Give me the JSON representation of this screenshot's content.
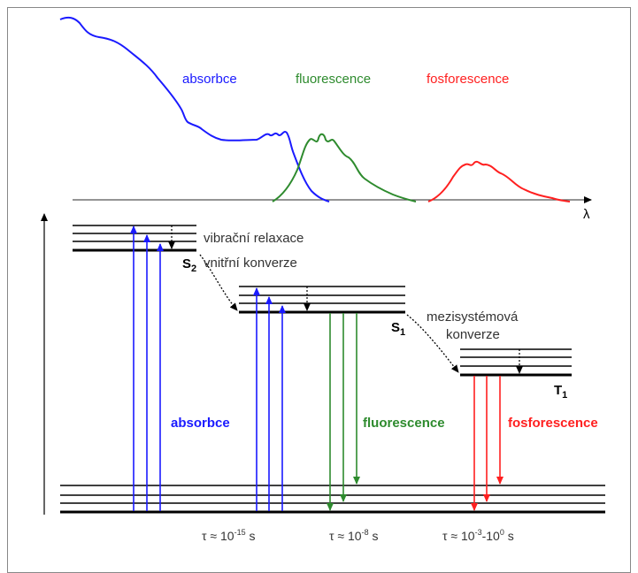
{
  "spectra": {
    "absorption_label": "absorbce",
    "fluorescence_label": "fluorescence",
    "phosphorescence_label": "fosforescence",
    "axis_label": "λ"
  },
  "states": {
    "s2": {
      "letter": "S",
      "sub": "2"
    },
    "s1": {
      "letter": "S",
      "sub": "1"
    },
    "t1": {
      "letter": "T",
      "sub": "1"
    }
  },
  "processes": {
    "vibrational_relaxation": "vibrační relaxace",
    "internal_conversion": "vnitřní konverze",
    "intersystem_line1": "mezisystémová",
    "intersystem_line2": "konverze",
    "absorption": "absorbce",
    "fluorescence": "fluorescence",
    "phosphorescence": "fosforescence"
  },
  "lifetimes": {
    "absorption": {
      "pre": "τ ≈ 10",
      "exp": "-15",
      "post": " s"
    },
    "fluorescence": {
      "pre": "τ ≈ 10",
      "exp": "-8",
      "post": " s"
    },
    "phosphorescence": {
      "pre": "τ ≈ 10",
      "exp1": "-3",
      "mid": "-10",
      "exp2": "0",
      "post": " s"
    }
  },
  "colors": {
    "absorption": "#1a1aff",
    "fluorescence": "#2e8b2e",
    "phosphorescence": "#ff2020",
    "line": "#000000"
  }
}
